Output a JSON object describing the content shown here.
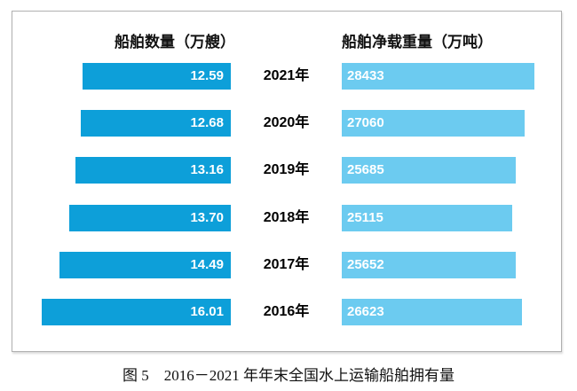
{
  "chart": {
    "left_header": "船舶数量（万艘）",
    "right_header": "船舶净载重量（万吨）",
    "colors": {
      "quantity_bar": "#0d9fd9",
      "deadweight_bar": "#6ccbf0",
      "bar_label_text": "#ffffff",
      "frame_border": "#b0b0b0"
    }
  },
  "chart_data": {
    "type": "bar",
    "orientation": "horizontal-paired",
    "title": "图 5　2016－2021 年年末全国水上运输船舶拥有量",
    "categories": [
      "2021年",
      "2020年",
      "2019年",
      "2018年",
      "2017年",
      "2016年"
    ],
    "series": [
      {
        "name": "船舶数量（万艘）",
        "side": "left",
        "values": [
          12.59,
          12.68,
          13.16,
          13.7,
          14.49,
          16.01
        ],
        "labels": [
          "12.59",
          "12.68",
          "13.16",
          "13.70",
          "14.49",
          "16.01"
        ]
      },
      {
        "name": "船舶净载重量（万吨）",
        "side": "right",
        "values": [
          28433,
          27060,
          25685,
          25115,
          25652,
          26623
        ],
        "labels": [
          "28433",
          "27060",
          "25685",
          "25115",
          "25652",
          "26623"
        ]
      }
    ],
    "value_labels_inside_bars": true,
    "axis_ticks_visible": false,
    "grid": false,
    "legend_position": "column-headers-top"
  },
  "caption": "图 5　2016－2021 年年末全国水上运输船舶拥有量"
}
